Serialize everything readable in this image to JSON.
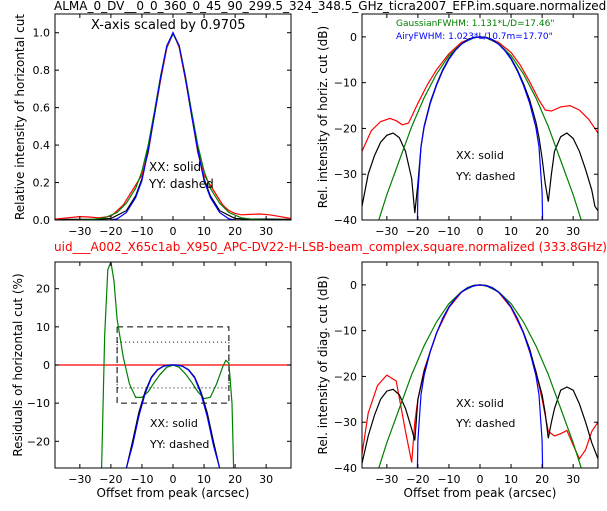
{
  "top_title": "ALMA_0_DV__0_0_360_0_45_90_299.5_324_348.5_GHz_ticra2007_EFP.im.square.normalized",
  "mid_title": "uid___A002_X65c1ab_X950_APC-DV22-H-LSB-beam_complex.square.normalized (333.8GHz)",
  "colors": {
    "black": "#000000",
    "red": "#ff0000",
    "green": "#008000",
    "blue": "#0000ff"
  },
  "chart_data": [
    {
      "id": "p1",
      "type": "line",
      "ylabel": "Relative intensity of horizontal cut",
      "xlabel": "",
      "xlim": [
        -38,
        38
      ],
      "ylim": [
        0,
        1.1
      ],
      "xticks": [
        -30,
        -20,
        -10,
        0,
        10,
        20,
        30
      ],
      "yticks": [
        0.0,
        0.2,
        0.4,
        0.6,
        0.8,
        1.0
      ],
      "ytick_labels": [
        "0.0",
        "0.2",
        "0.4",
        "0.6",
        "0.8",
        "1.0"
      ],
      "annotations": [
        "X-axis scaled by 0.9705",
        "XX: solid",
        "YY: dashed"
      ],
      "series": [
        {
          "color": "#000000",
          "x": [
            -38,
            -30,
            -25,
            -20,
            -15,
            -12,
            -10,
            -8,
            -6,
            -4,
            -2,
            0,
            2,
            4,
            6,
            8,
            10,
            12,
            15,
            20,
            25,
            30,
            38
          ],
          "y": [
            0.003,
            0.004,
            0.004,
            0.008,
            0.05,
            0.13,
            0.22,
            0.38,
            0.56,
            0.75,
            0.92,
            0.995,
            0.93,
            0.76,
            0.56,
            0.38,
            0.22,
            0.13,
            0.05,
            0.008,
            0.005,
            0.005,
            0.003
          ]
        },
        {
          "color": "#ff0000",
          "x": [
            -38,
            -34,
            -30,
            -27,
            -24,
            -20,
            -16,
            -13,
            -10,
            -8,
            -6,
            -4,
            -2,
            0,
            2,
            4,
            6,
            8,
            10,
            13,
            16,
            18,
            20,
            22,
            25,
            28,
            31,
            34,
            38
          ],
          "y": [
            0.005,
            0.012,
            0.018,
            0.016,
            0.012,
            0.02,
            0.08,
            0.16,
            0.24,
            0.36,
            0.56,
            0.75,
            0.92,
            1.0,
            0.92,
            0.75,
            0.56,
            0.36,
            0.24,
            0.16,
            0.08,
            0.05,
            0.035,
            0.028,
            0.03,
            0.032,
            0.028,
            0.02,
            0.008
          ]
        },
        {
          "color": "#008000",
          "x": [
            -38,
            -30,
            -26,
            -22,
            -18,
            -15,
            -12,
            -10,
            -8,
            -6,
            -4,
            -2,
            0,
            2,
            4,
            6,
            8,
            10,
            12,
            15,
            18,
            22,
            26,
            30,
            38
          ],
          "y": [
            0.0,
            0.001,
            0.003,
            0.012,
            0.04,
            0.09,
            0.17,
            0.26,
            0.4,
            0.58,
            0.77,
            0.93,
            0.995,
            0.93,
            0.77,
            0.58,
            0.4,
            0.26,
            0.17,
            0.09,
            0.04,
            0.012,
            0.003,
            0.001,
            0.0
          ]
        },
        {
          "color": "#0000ff",
          "x": [
            -20,
            -18,
            -15,
            -12,
            -10,
            -8,
            -6,
            -4,
            -2,
            0,
            2,
            4,
            6,
            8,
            10,
            12,
            15,
            18,
            20
          ],
          "y": [
            0.0,
            0.006,
            0.04,
            0.12,
            0.21,
            0.37,
            0.56,
            0.76,
            0.93,
            1.0,
            0.93,
            0.76,
            0.56,
            0.37,
            0.21,
            0.12,
            0.04,
            0.006,
            0.0
          ]
        }
      ]
    },
    {
      "id": "p2",
      "type": "line",
      "ylabel": "Rel. intensity of horiz. cut (dB)",
      "xlabel": "",
      "xlim": [
        -38,
        38
      ],
      "ylim": [
        -40,
        5
      ],
      "xticks": [
        -30,
        -20,
        -10,
        0,
        10,
        20,
        30
      ],
      "yticks": [
        -40,
        -30,
        -20,
        -10,
        0
      ],
      "ytick_labels": [
        "−40",
        "−30",
        "−20",
        "−10",
        "0"
      ],
      "annotations": [
        "XX: solid",
        "YY: dashed"
      ],
      "legend": [
        {
          "text": "GaussianFWHM: 1.131*L/D=17.46\"",
          "color": "#008000"
        },
        {
          "text": "AiryFWHM: 1.023*L/10.7m=17.70\"",
          "color": "#0000ff"
        }
      ],
      "series": [
        {
          "color": "#ff0000",
          "x": [
            -38,
            -35,
            -32,
            -29,
            -27,
            -25,
            -23,
            -20,
            -17,
            -14,
            -10,
            -6,
            -3,
            0,
            3,
            6,
            10,
            13,
            16,
            19,
            21,
            23,
            26,
            29,
            32,
            35,
            38
          ],
          "y": [
            -25,
            -20.5,
            -18.5,
            -17.8,
            -18.3,
            -19.2,
            -18.8,
            -14.5,
            -10.5,
            -7.2,
            -3.7,
            -1.2,
            -0.3,
            0,
            -0.3,
            -1.2,
            -3.4,
            -6.2,
            -9.8,
            -13.8,
            -16,
            -16.2,
            -15.3,
            -15,
            -16,
            -18,
            -21
          ]
        },
        {
          "color": "#000000",
          "x": [
            -38,
            -36,
            -34,
            -32,
            -30,
            -28,
            -26,
            -24,
            -22,
            -21,
            -20,
            -19,
            -18,
            -16,
            -14,
            -12,
            -10,
            -8,
            -6,
            -4,
            -2,
            0,
            2,
            4,
            6,
            8,
            10,
            12,
            14,
            16,
            18,
            19,
            20,
            21,
            22,
            23,
            24,
            26,
            28,
            30,
            32,
            34,
            36,
            37,
            38
          ],
          "y": [
            -37,
            -30,
            -26,
            -23,
            -21.5,
            -21,
            -22,
            -25,
            -31,
            -38.5,
            -32,
            -24,
            -19.5,
            -14.2,
            -10.4,
            -7.2,
            -4.7,
            -2.8,
            -1.5,
            -0.6,
            -0.1,
            0,
            -0.1,
            -0.6,
            -1.5,
            -2.8,
            -4.7,
            -7.2,
            -10.2,
            -13.8,
            -18.6,
            -22,
            -26.5,
            -32,
            -36,
            -30,
            -25,
            -21.8,
            -21,
            -22.2,
            -25,
            -29,
            -33.5,
            -37,
            -38
          ]
        },
        {
          "color": "#008000",
          "x": [
            -38,
            -34,
            -30,
            -26,
            -22,
            -18,
            -14,
            -10,
            -6,
            -2,
            0,
            2,
            6,
            10,
            14,
            18,
            22,
            26,
            30,
            34,
            38
          ],
          "y": [
            -52,
            -43,
            -34.5,
            -27,
            -19.6,
            -13.3,
            -8.1,
            -4.1,
            -1.5,
            -0.2,
            0,
            -0.2,
            -1.5,
            -4.1,
            -8.1,
            -13.3,
            -19.6,
            -27,
            -34.5,
            -43,
            -52
          ]
        },
        {
          "color": "#0000ff",
          "x": [
            -20.3,
            -20,
            -19,
            -18,
            -16,
            -14,
            -12,
            -10,
            -8,
            -6,
            -4,
            -2,
            0,
            2,
            4,
            6,
            8,
            10,
            12,
            14,
            16,
            18,
            19,
            20,
            20.3
          ],
          "y": [
            -45,
            -34,
            -24,
            -19.8,
            -14.5,
            -10.6,
            -7.4,
            -4.9,
            -3,
            -1.6,
            -0.7,
            -0.2,
            0,
            -0.2,
            -0.7,
            -1.6,
            -3,
            -4.9,
            -7.4,
            -10.6,
            -14.5,
            -19.8,
            -24,
            -34,
            -45
          ]
        }
      ]
    },
    {
      "id": "p3",
      "type": "line",
      "ylabel": "Residuals of horizontal cut (%)",
      "xlabel": "Offset from peak (arcsec)",
      "xlim": [
        -38,
        38
      ],
      "ylim": [
        -27,
        27
      ],
      "xticks": [
        -30,
        -20,
        -10,
        0,
        10,
        20,
        30
      ],
      "yticks": [
        -20,
        -10,
        0,
        10,
        20
      ],
      "ytick_labels": [
        "−20",
        "−10",
        "0",
        "10",
        "20"
      ],
      "annotations": [
        "XX: solid",
        "YY: dashed"
      ],
      "series": [
        {
          "color": "#ff0000",
          "x": [
            -38,
            38
          ],
          "y": [
            0,
            0
          ]
        },
        {
          "color": "#008000",
          "x": [
            -23,
            -22,
            -21,
            -20,
            -19,
            -18,
            -16,
            -14,
            -12,
            -10,
            -8,
            -6,
            -4,
            -2,
            0,
            2,
            4,
            6,
            8,
            10,
            12,
            14,
            16,
            17,
            18,
            19,
            19.5
          ],
          "y": [
            -27,
            8,
            25,
            27,
            22,
            12,
            2,
            -5,
            -8.5,
            -8.5,
            -7,
            -4.5,
            -2.3,
            -0.6,
            0,
            -0.6,
            -2.3,
            -4.5,
            -7,
            -8.8,
            -8.5,
            -5,
            -0.5,
            1.2,
            0.5,
            -10,
            -27
          ]
        },
        {
          "color": "#000000",
          "x": [
            -15,
            -13,
            -11,
            -9,
            -7,
            -5,
            -3,
            -1,
            0,
            1,
            3,
            5,
            7,
            9,
            11,
            13,
            15
          ],
          "y": [
            -27,
            -20,
            -12.5,
            -7,
            -3.2,
            -1.2,
            -0.3,
            0,
            0,
            0,
            -0.3,
            -1.2,
            -3.2,
            -7,
            -12.5,
            -20,
            -27
          ]
        },
        {
          "color": "#0000ff",
          "x": [
            -15,
            -13,
            -11,
            -9,
            -7,
            -5,
            -3,
            -1,
            0,
            1,
            3,
            5,
            7,
            9,
            11,
            13,
            15
          ],
          "y": [
            -27,
            -21,
            -13.5,
            -7.5,
            -3.4,
            -1.3,
            -0.3,
            0,
            0,
            0,
            -0.3,
            -1.3,
            -3.4,
            -7.5,
            -13.5,
            -21,
            -27
          ]
        }
      ],
      "boxes": [
        {
          "style": "dashed",
          "x": [
            -18,
            18
          ],
          "y": [
            -10,
            10
          ]
        },
        {
          "style": "dotted",
          "x": [
            -18,
            18
          ],
          "y": [
            -6,
            6
          ]
        }
      ]
    },
    {
      "id": "p4",
      "type": "line",
      "ylabel": "Rel. intensity of diag. cut (dB)",
      "xlabel": "Offset from peak (arcsec)",
      "xlim": [
        -38,
        38
      ],
      "ylim": [
        -40,
        5
      ],
      "xticks": [
        -30,
        -20,
        -10,
        0,
        10,
        20,
        30
      ],
      "yticks": [
        -40,
        -30,
        -20,
        -10,
        0
      ],
      "ytick_labels": [
        "−40",
        "−30",
        "−20",
        "−10",
        "0"
      ],
      "annotations": [
        "XX: solid",
        "YY: dashed"
      ],
      "series": [
        {
          "color": "#ff0000",
          "x": [
            -38,
            -36,
            -33,
            -30,
            -27,
            -24,
            -22,
            -21,
            -20,
            -18,
            -14,
            -10,
            -6,
            -3,
            0,
            3,
            6,
            10,
            14,
            18,
            20,
            21,
            22,
            24,
            26,
            28,
            30,
            32,
            34,
            36,
            38
          ],
          "y": [
            -37,
            -28,
            -22,
            -19.7,
            -21,
            -32,
            -38.8,
            -30,
            -25,
            -18.6,
            -10.5,
            -5,
            -1.6,
            -0.4,
            0,
            -0.4,
            -1.6,
            -5,
            -10.5,
            -18.8,
            -25,
            -28.5,
            -32,
            -33,
            -32.5,
            -31.8,
            -35,
            -38,
            -36,
            -32,
            -30
          ]
        },
        {
          "color": "#000000",
          "x": [
            -38,
            -36,
            -34,
            -32,
            -30,
            -28,
            -26,
            -24,
            -22,
            -21,
            -20,
            -18,
            -16,
            -14,
            -12,
            -10,
            -8,
            -6,
            -4,
            -2,
            0,
            2,
            4,
            6,
            8,
            10,
            12,
            14,
            16,
            18,
            20,
            21,
            22,
            23,
            24,
            26,
            28,
            30,
            32,
            34,
            36,
            38
          ],
          "y": [
            -39,
            -33,
            -28.5,
            -25,
            -23.2,
            -22.8,
            -24,
            -27,
            -31.5,
            -34,
            -25,
            -19,
            -14.5,
            -10.6,
            -7.3,
            -4.8,
            -2.9,
            -1.5,
            -0.6,
            -0.1,
            0,
            -0.1,
            -0.6,
            -1.5,
            -2.9,
            -4.8,
            -7.3,
            -10.4,
            -14,
            -19,
            -24,
            -28,
            -33.5,
            -30,
            -27,
            -23,
            -22.3,
            -23,
            -26,
            -30,
            -34.5,
            -38
          ]
        },
        {
          "color": "#008000",
          "x": [
            -38,
            -34,
            -30,
            -26,
            -22,
            -18,
            -14,
            -10,
            -6,
            -2,
            0,
            2,
            6,
            10,
            14,
            18,
            22,
            26,
            30,
            34,
            38
          ],
          "y": [
            -52,
            -43,
            -34.5,
            -27,
            -19.6,
            -13.3,
            -8.1,
            -4.1,
            -1.5,
            -0.2,
            0,
            -0.2,
            -1.5,
            -4.1,
            -8.1,
            -13.3,
            -19.6,
            -27,
            -34.5,
            -43,
            -52
          ]
        },
        {
          "color": "#0000ff",
          "x": [
            -20.3,
            -20,
            -19,
            -18,
            -16,
            -14,
            -12,
            -10,
            -8,
            -6,
            -4,
            -2,
            0,
            2,
            4,
            6,
            8,
            10,
            12,
            14,
            16,
            18,
            19,
            20,
            20.3
          ],
          "y": [
            -45,
            -34,
            -24,
            -19.8,
            -14.5,
            -10.6,
            -7.4,
            -4.9,
            -3,
            -1.6,
            -0.7,
            -0.2,
            0,
            -0.2,
            -0.7,
            -1.6,
            -3,
            -4.9,
            -7.4,
            -10.6,
            -14.5,
            -19.8,
            -24,
            -34,
            -45
          ]
        }
      ]
    }
  ]
}
